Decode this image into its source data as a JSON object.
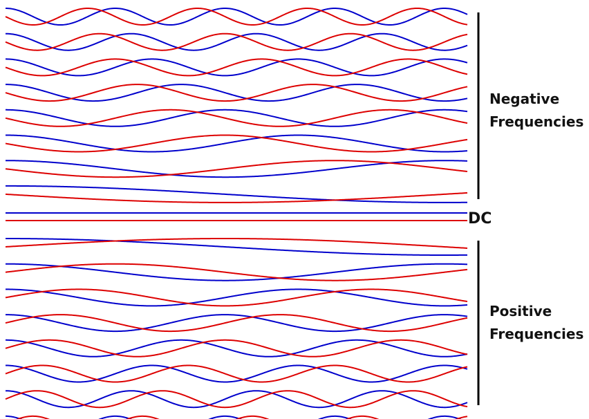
{
  "labels": {
    "negative_line1": "Negative",
    "negative_line2": "Frequencies",
    "dc": "DC",
    "positive_line1": "Positive",
    "positive_line2": "Frequencies"
  },
  "colors": {
    "cosine": "#0000cc",
    "sine": "#dd0000",
    "bracket": "#000000"
  },
  "waves": {
    "negative_frequencies": [
      8,
      7,
      6,
      5,
      4,
      3,
      2,
      1
    ],
    "dc_frequency": 0,
    "positive_frequencies": [
      1,
      2,
      3,
      4,
      5,
      6,
      7,
      8
    ]
  }
}
